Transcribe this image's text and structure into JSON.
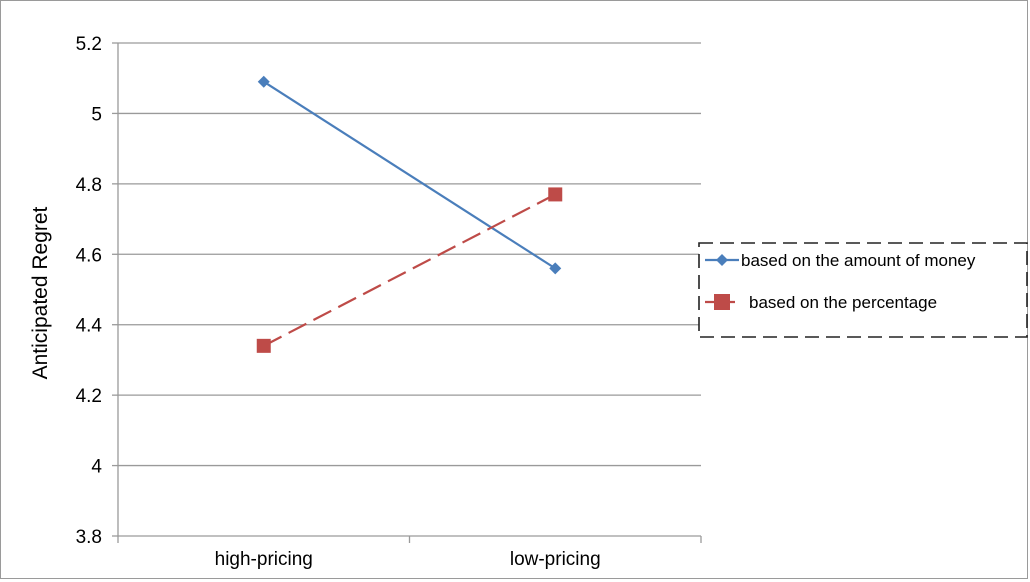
{
  "chart_data": {
    "type": "line",
    "title": "",
    "xlabel": "",
    "ylabel": "Anticipated  Regret",
    "categories": [
      "high-pricing",
      "low-pricing"
    ],
    "ylim": [
      3.8,
      5.2
    ],
    "yticks": [
      "3.8",
      "4",
      "4.2",
      "4.4",
      "4.6",
      "4.8",
      "5",
      "5.2"
    ],
    "grid": true,
    "legend_position": "right",
    "series": [
      {
        "name": "based on the amount of money",
        "values": [
          5.09,
          4.56
        ],
        "color": "#4a7ebb",
        "marker": "diamond",
        "line_style": "solid"
      },
      {
        "name": "based on the percentage",
        "values": [
          4.34,
          4.77
        ],
        "color": "#be4b48",
        "marker": "square",
        "line_style": "dashed"
      }
    ]
  }
}
